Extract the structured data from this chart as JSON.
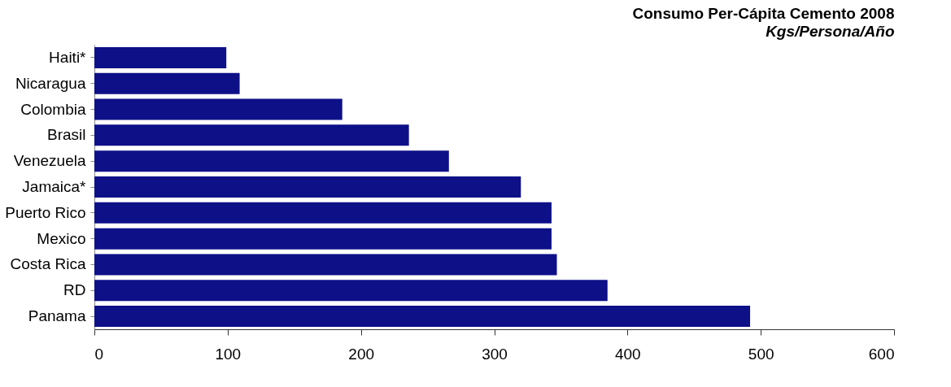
{
  "chart_data": {
    "type": "bar",
    "orientation": "horizontal",
    "title": "Consumo Per-Cápita Cemento 2008",
    "subtitle": "Kgs/Persona/Año",
    "categories": [
      "Haiti*",
      "Nicaragua",
      "Colombia",
      "Brasil",
      "Venezuela",
      "Jamaica*",
      "Puerto Rico",
      "Mexico",
      "Costa Rica",
      "RD",
      "Panama"
    ],
    "values": [
      99,
      109,
      186,
      236,
      266,
      320,
      343,
      343,
      347,
      385,
      492
    ],
    "color": "#0e1088",
    "xlim": [
      0,
      600
    ],
    "xticks": [
      0,
      100,
      200,
      300,
      400,
      500,
      600
    ],
    "grid": false
  }
}
